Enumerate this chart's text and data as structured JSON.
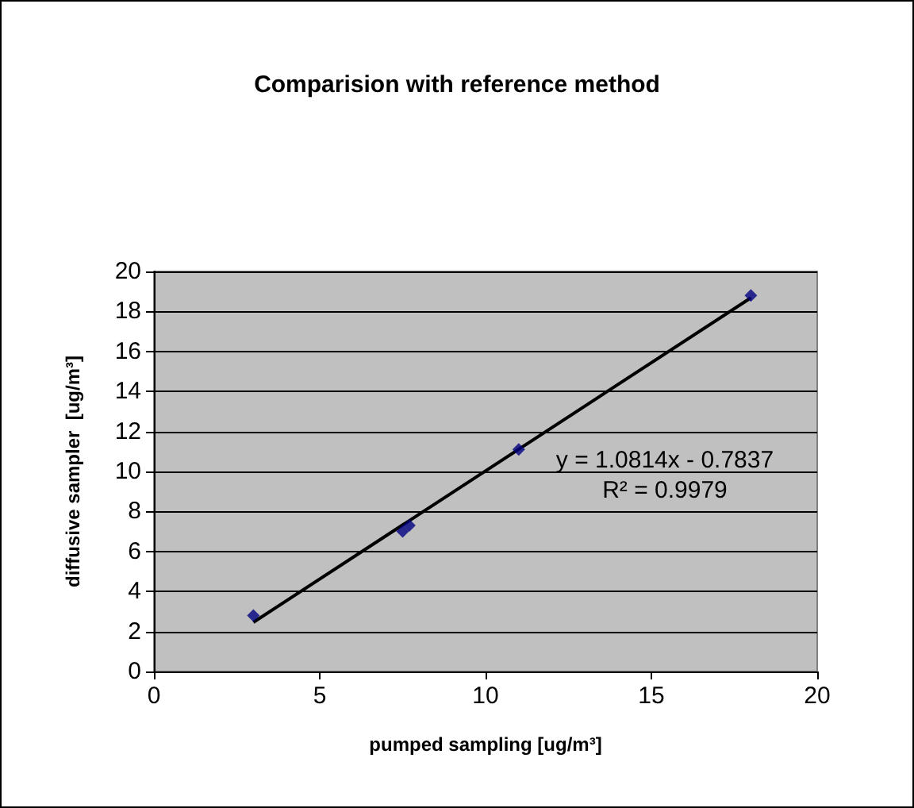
{
  "chart_data": {
    "type": "scatter",
    "title": "Comparision with reference method",
    "xlabel": "pumped sampling [ug/m³]",
    "ylabel": "diffusive sampler  [ug/m³]",
    "x": [
      3,
      7.5,
      7.7,
      11,
      18
    ],
    "series": [
      {
        "color": "#000080",
        "values": [
          2.8,
          7.0,
          7.3,
          11.1,
          18.8
        ]
      },
      {
        "type": "line",
        "color": "#000000",
        "x": [
          3,
          18
        ],
        "values": [
          2.46,
          18.68
        ],
        "marker": "none"
      }
    ],
    "annotations": [
      "y = 1.0814x - 0.7837",
      "R² = 0.9979"
    ],
    "xlim": [
      0,
      20
    ],
    "xticks": [
      0,
      5,
      10,
      15,
      20
    ],
    "ylim": [
      0,
      20
    ],
    "yticks": [
      0,
      2,
      4,
      6,
      8,
      10,
      12,
      14,
      16,
      18,
      20
    ],
    "grid": "y",
    "legend": false,
    "marker": "diamond",
    "line_style": "solid"
  }
}
